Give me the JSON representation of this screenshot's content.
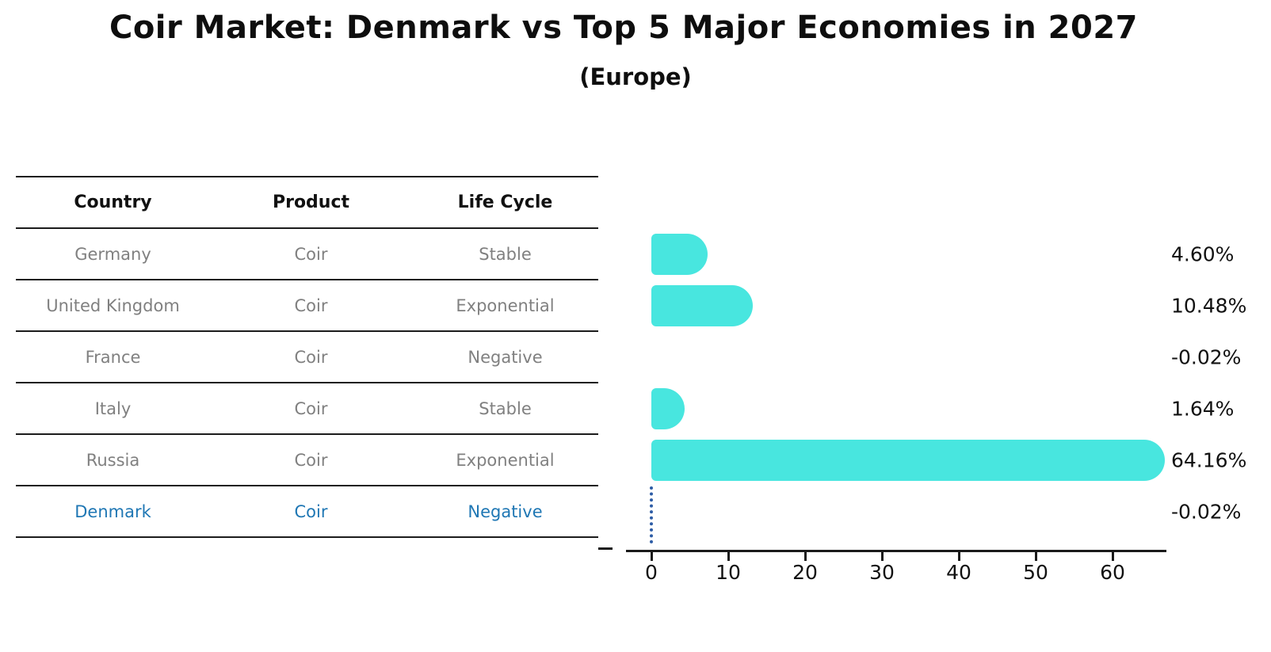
{
  "title": "Coir Market: Denmark vs Top 5 Major Economies in 2027",
  "subtitle": "(Europe)",
  "table": {
    "headers": [
      "Country",
      "Product",
      "Life Cycle"
    ],
    "rows": [
      {
        "country": "Germany",
        "product": "Coir",
        "life_cycle": "Stable",
        "highlighted": false
      },
      {
        "country": "United Kingdom",
        "product": "Coir",
        "life_cycle": "Exponential",
        "highlighted": false
      },
      {
        "country": "France",
        "product": "Coir",
        "life_cycle": "Negative",
        "highlighted": false
      },
      {
        "country": "Italy",
        "product": "Coir",
        "life_cycle": "Stable",
        "highlighted": false
      },
      {
        "country": "Russia",
        "product": "Coir",
        "life_cycle": "Exponential",
        "highlighted": false
      },
      {
        "country": "Denmark",
        "product": "Coir",
        "life_cycle": "Negative",
        "highlighted": true
      }
    ]
  },
  "chart_data": {
    "type": "bar",
    "orientation": "horizontal",
    "title": "Coir Market: Denmark vs Top 5 Major Economies in 2027",
    "subtitle": "(Europe)",
    "categories": [
      "Germany",
      "United Kingdom",
      "France",
      "Italy",
      "Russia",
      "Denmark"
    ],
    "values": [
      4.6,
      10.48,
      -0.02,
      1.64,
      64.16,
      -0.02
    ],
    "value_labels": [
      "4.60%",
      "10.48%",
      "-0.02%",
      "1.64%",
      "64.16%",
      "-0.02%"
    ],
    "xlabel": "",
    "ylabel": "",
    "xticks": [
      0,
      10,
      20,
      30,
      40,
      50,
      60
    ],
    "xlim": [
      -3.5,
      67
    ],
    "grid": false,
    "legend": false,
    "bar_color": "#48e6df",
    "highlight": {
      "category": "Denmark",
      "marker": "dotted-vertical-line-at-zero",
      "marker_color": "#2e5da6",
      "text_color": "#1f77b4"
    }
  },
  "colors": {
    "background": "#ffffff",
    "bar": "#48e6df",
    "table_text": "#808080",
    "header_text": "#111111",
    "highlight_text": "#1f77b4",
    "axis": "#1a1a1a"
  }
}
